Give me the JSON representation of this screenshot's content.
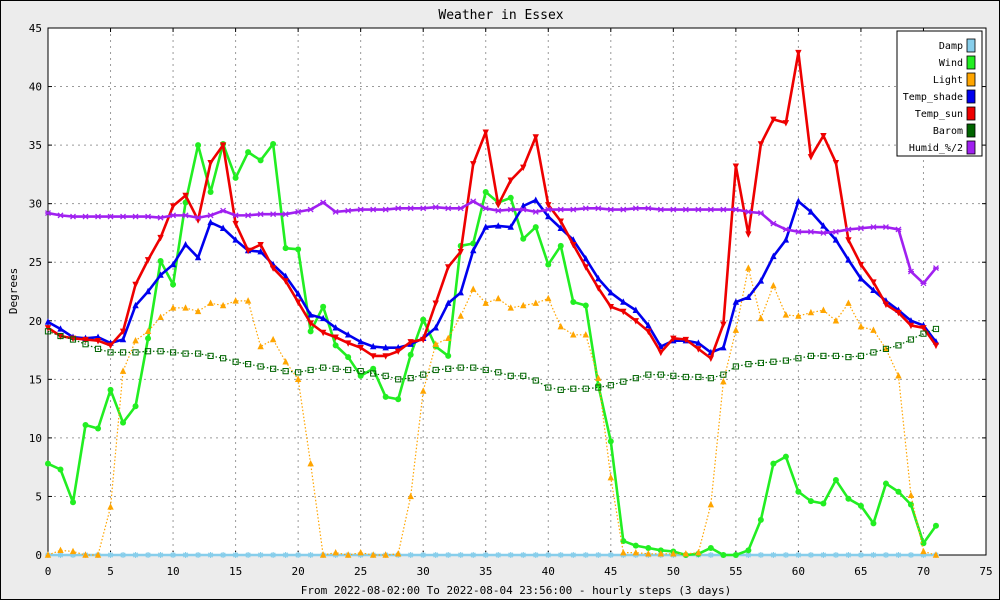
{
  "chart_data": {
    "type": "line",
    "title": "Weather in Essex",
    "xlabel": "From 2022-08-02:00 To 2022-08-04 23:56:00 - hourly steps (3 days)",
    "ylabel": "Degrees",
    "xlim": [
      0,
      75
    ],
    "ylim": [
      0,
      45
    ],
    "xticks": [
      0,
      5,
      10,
      15,
      20,
      25,
      30,
      35,
      40,
      45,
      50,
      55,
      60,
      65,
      70,
      75
    ],
    "yticks": [
      0,
      5,
      10,
      15,
      20,
      25,
      30,
      35,
      40,
      45
    ],
    "grid": true,
    "legend_position": "top-right",
    "x": [
      0,
      1,
      2,
      3,
      4,
      5,
      6,
      7,
      8,
      9,
      10,
      11,
      12,
      13,
      14,
      15,
      16,
      17,
      18,
      19,
      20,
      21,
      22,
      23,
      24,
      25,
      26,
      27,
      28,
      29,
      30,
      31,
      32,
      33,
      34,
      35,
      36,
      37,
      38,
      39,
      40,
      41,
      42,
      43,
      44,
      45,
      46,
      47,
      48,
      49,
      50,
      51,
      52,
      53,
      54,
      55,
      56,
      57,
      58,
      59,
      60,
      61,
      62,
      63,
      64,
      65,
      66,
      67,
      68,
      69,
      70,
      71
    ],
    "series": [
      {
        "name": "Damp",
        "color": "#87ceeb",
        "marker": "star",
        "dotted": false,
        "values": [
          0,
          0,
          0,
          0,
          0,
          0,
          0,
          0,
          0,
          0,
          0,
          0,
          0,
          0,
          0,
          0,
          0,
          0,
          0,
          0,
          0,
          0,
          0,
          0,
          0,
          0,
          0,
          0,
          0,
          0,
          0,
          0,
          0,
          0,
          0,
          0,
          0,
          0,
          0,
          0,
          0,
          0,
          0,
          0,
          0,
          0,
          0,
          0,
          0,
          0,
          0,
          0,
          0,
          0,
          0,
          0,
          0,
          0,
          0,
          0,
          0,
          0,
          0,
          0,
          0,
          0,
          0,
          0,
          0,
          0,
          0,
          0
        ]
      },
      {
        "name": "Wind",
        "color": "#22ee22",
        "marker": "circle",
        "dotted": false,
        "values": [
          7.8,
          7.3,
          4.5,
          11.1,
          10.8,
          14.1,
          11.3,
          12.7,
          18.5,
          25.1,
          23.1,
          30.1,
          35.0,
          31.0,
          35.1,
          32.2,
          34.4,
          33.7,
          35.1,
          26.2,
          26.1,
          19.1,
          21.2,
          17.9,
          16.9,
          15.3,
          15.9,
          13.5,
          13.3,
          17.1,
          20.1,
          17.8,
          17.0,
          26.4,
          26.6,
          31.0,
          30.1,
          30.5,
          27.0,
          28.0,
          24.8,
          26.4,
          21.6,
          21.3,
          14.5,
          9.7,
          1.2,
          0.8,
          0.6,
          0.4,
          0.3,
          0.0,
          0.1,
          0.6,
          0.0,
          0.0,
          0.4,
          3.0,
          7.8,
          8.4,
          5.4,
          4.6,
          4.4,
          6.4,
          4.8,
          4.2,
          2.7,
          6.1,
          5.4,
          4.3,
          1.0,
          2.5
        ]
      },
      {
        "name": "Light",
        "color": "#ffa500",
        "marker": "triangle",
        "dotted": true,
        "values": [
          0.0,
          0.4,
          0.3,
          0.0,
          0.0,
          4.1,
          15.7,
          18.3,
          19.1,
          20.3,
          21.1,
          21.1,
          20.8,
          21.5,
          21.3,
          21.7,
          21.7,
          17.8,
          18.4,
          16.5,
          15.0,
          7.8,
          0.0,
          0.2,
          0.0,
          0.2,
          0.0,
          0.0,
          0.1,
          5.0,
          14.0,
          18.0,
          18.5,
          20.4,
          22.7,
          21.5,
          21.9,
          21.1,
          21.3,
          21.5,
          21.9,
          19.5,
          18.8,
          18.8,
          15.1,
          6.6,
          0.2,
          0.2,
          0.1,
          0.1,
          0.1,
          0.1,
          0.2,
          4.3,
          14.8,
          19.2,
          24.5,
          20.2,
          23.0,
          20.5,
          20.4,
          20.7,
          20.9,
          20.0,
          21.5,
          19.5,
          19.2,
          17.6,
          15.3,
          5.1,
          0.3,
          0.0
        ]
      },
      {
        "name": "Temp_shade",
        "color": "#0000ee",
        "marker": "triangle",
        "dotted": false,
        "values": [
          19.9,
          19.3,
          18.6,
          18.5,
          18.6,
          18.1,
          18.4,
          21.3,
          22.5,
          23.9,
          24.8,
          26.5,
          25.4,
          28.4,
          27.9,
          26.9,
          26.0,
          25.9,
          24.8,
          23.8,
          22.3,
          20.5,
          20.2,
          19.4,
          18.8,
          18.2,
          17.8,
          17.7,
          17.7,
          18.0,
          18.5,
          19.4,
          21.5,
          22.4,
          26.0,
          28.0,
          28.1,
          28.0,
          29.8,
          30.3,
          28.9,
          27.9,
          26.9,
          25.3,
          23.6,
          22.4,
          21.6,
          20.9,
          19.6,
          17.8,
          18.3,
          18.3,
          18.1,
          17.3,
          17.7,
          21.6,
          22.0,
          23.4,
          25.5,
          26.9,
          30.2,
          29.3,
          28.1,
          26.9,
          25.2,
          23.6,
          22.6,
          21.7,
          20.9,
          20.0,
          19.6,
          18.2
        ]
      },
      {
        "name": "Temp_sun",
        "color": "#ee0000",
        "marker": "tri-down",
        "dotted": false,
        "values": [
          19.4,
          18.7,
          18.5,
          18.4,
          18.3,
          17.9,
          19.1,
          23.1,
          25.2,
          27.1,
          29.8,
          30.7,
          28.6,
          33.5,
          35.0,
          28.3,
          26.0,
          26.5,
          24.5,
          23.4,
          21.6,
          19.8,
          19.0,
          18.6,
          18.1,
          17.7,
          17.0,
          17.0,
          17.4,
          18.2,
          18.4,
          21.5,
          24.6,
          25.9,
          33.4,
          36.1,
          29.9,
          32.0,
          33.1,
          35.7,
          29.9,
          28.5,
          26.5,
          24.6,
          22.8,
          21.2,
          20.8,
          20.0,
          19.1,
          17.3,
          18.5,
          18.4,
          17.6,
          16.8,
          19.7,
          33.2,
          27.4,
          35.1,
          37.2,
          36.9,
          42.9,
          34.0,
          35.8,
          33.5,
          26.9,
          24.8,
          23.3,
          21.4,
          20.7,
          19.6,
          19.4,
          17.9
        ]
      },
      {
        "name": "Barom",
        "color": "#006400",
        "marker": "square",
        "dotted": true,
        "values": [
          19.1,
          18.7,
          18.4,
          18.0,
          17.6,
          17.3,
          17.3,
          17.3,
          17.4,
          17.4,
          17.3,
          17.2,
          17.2,
          17.0,
          16.8,
          16.5,
          16.3,
          16.1,
          15.9,
          15.7,
          15.6,
          15.8,
          16.0,
          15.9,
          15.8,
          15.7,
          15.5,
          15.3,
          15.0,
          15.1,
          15.4,
          15.8,
          15.9,
          16.0,
          16.0,
          15.8,
          15.6,
          15.3,
          15.3,
          14.9,
          14.3,
          14.1,
          14.2,
          14.2,
          14.3,
          14.5,
          14.8,
          15.1,
          15.4,
          15.4,
          15.3,
          15.2,
          15.2,
          15.1,
          15.4,
          16.1,
          16.3,
          16.4,
          16.5,
          16.6,
          16.8,
          17.0,
          17.0,
          17.0,
          16.9,
          17.0,
          17.3,
          17.6,
          17.9,
          18.4,
          18.9,
          19.3
        ]
      },
      {
        "name": "Humid_%/2",
        "color": "#a020f0",
        "marker": "cross",
        "dotted": false,
        "values": [
          29.2,
          29.0,
          28.9,
          28.9,
          28.9,
          28.9,
          28.9,
          28.9,
          28.9,
          28.8,
          29.0,
          29.0,
          28.8,
          29.0,
          29.4,
          29.0,
          29.0,
          29.1,
          29.1,
          29.1,
          29.3,
          29.5,
          30.1,
          29.3,
          29.4,
          29.5,
          29.5,
          29.5,
          29.6,
          29.6,
          29.6,
          29.7,
          29.6,
          29.6,
          30.2,
          29.6,
          29.4,
          29.5,
          29.5,
          29.3,
          29.5,
          29.5,
          29.5,
          29.6,
          29.6,
          29.5,
          29.5,
          29.6,
          29.6,
          29.5,
          29.5,
          29.5,
          29.5,
          29.5,
          29.5,
          29.5,
          29.3,
          29.2,
          28.3,
          27.8,
          27.6,
          27.6,
          27.5,
          27.6,
          27.8,
          27.9,
          28.0,
          28.0,
          27.8,
          24.2,
          23.2,
          24.5
        ]
      }
    ]
  }
}
